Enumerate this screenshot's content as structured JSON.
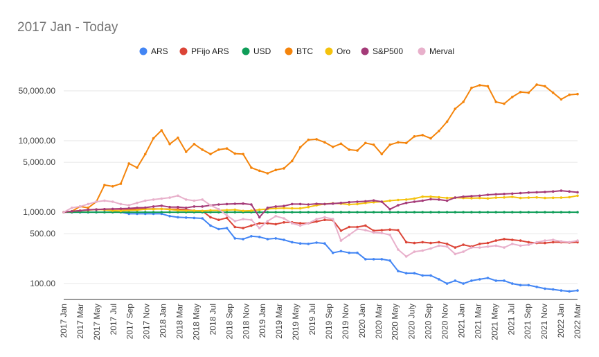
{
  "chart_data": {
    "type": "line",
    "title": "2017 Jan - Today",
    "xlabel": "",
    "ylabel": "",
    "yscale": "log",
    "ylim": [
      60,
      100000
    ],
    "grid": true,
    "legend_position": "top",
    "yticks": [
      {
        "value": 100,
        "label": "100.00"
      },
      {
        "value": 500,
        "label": "500.00"
      },
      {
        "value": 1000,
        "label": "1,000.00"
      },
      {
        "value": 5000,
        "label": "5,000.00"
      },
      {
        "value": 10000,
        "label": "10,000.00"
      },
      {
        "value": 50000,
        "label": "50,000.00"
      }
    ],
    "tick_labels": [
      "2017 Jan",
      "2017 Mar",
      "2017 May",
      "2017 Jul",
      "2017 Sep",
      "2017 Nov",
      "2018 Jan",
      "2018 Mar",
      "2018 May",
      "2018 Jul",
      "2018 Sep",
      "2018 Nov",
      "2019 Jan",
      "2019 Mar",
      "2019 May",
      "2019 Jul",
      "2019 Sep",
      "2019 Nov",
      "2020 Jan",
      "2020 Mar",
      "2020 May",
      "2020 July",
      "2020 Sep",
      "2020 Nov",
      "2021 Jan",
      "2021 Mar",
      "2021 May",
      "2021 Jul",
      "2021 Sep",
      "2021 Nov",
      "2022 Jan",
      "2022 Mar"
    ],
    "series": [
      {
        "name": "ARS",
        "color": "#4285f4",
        "values": [
          1000,
          1000,
          1000,
          1000,
          1000,
          1000,
          1000,
          1000,
          950,
          950,
          950,
          950,
          950,
          880,
          850,
          840,
          830,
          820,
          650,
          580,
          600,
          430,
          420,
          460,
          450,
          420,
          430,
          410,
          380,
          365,
          360,
          375,
          365,
          270,
          285,
          270,
          270,
          220,
          220,
          220,
          210,
          150,
          140,
          140,
          130,
          130,
          115,
          100,
          110,
          100,
          110,
          115,
          120,
          110,
          110,
          100,
          95,
          95,
          90,
          85,
          83,
          80,
          78,
          80
        ]
      },
      {
        "name": "PFijo ARS",
        "color": "#db4437",
        "values": [
          1000,
          1020,
          1050,
          1080,
          1090,
          1100,
          1100,
          1100,
          1100,
          1100,
          1110,
          1110,
          1110,
          1100,
          1100,
          1080,
          1050,
          1040,
          850,
          780,
          830,
          620,
          600,
          650,
          700,
          700,
          680,
          720,
          720,
          700,
          700,
          740,
          780,
          770,
          550,
          620,
          620,
          650,
          550,
          560,
          570,
          560,
          380,
          370,
          380,
          370,
          380,
          360,
          320,
          350,
          330,
          360,
          370,
          400,
          420,
          410,
          400,
          380,
          370,
          370,
          380,
          380,
          375,
          380
        ]
      },
      {
        "name": "USD",
        "color": "#0f9d58",
        "values": [
          1000,
          1000,
          1000,
          1000,
          1000,
          1000,
          1000,
          1000,
          1000,
          1000,
          1000,
          1000,
          1000,
          1000,
          1000,
          1000,
          1000,
          1000,
          1000,
          1000,
          1000,
          1000,
          1000,
          1000,
          1000,
          1000,
          1000,
          1000,
          1000,
          1000,
          1000,
          1000,
          1000,
          1000,
          1000,
          1000,
          1000,
          1000,
          1000,
          1000,
          1000,
          1000,
          1000,
          1000,
          1000,
          1000,
          1000,
          1000,
          1000,
          1000,
          1000,
          1000,
          1000,
          1000,
          1000,
          1000,
          1000,
          1000,
          1000,
          1000,
          1000,
          1000,
          1000,
          1000
        ]
      },
      {
        "name": "BTC",
        "color": "#f4840b",
        "values": [
          1000,
          1030,
          1200,
          1150,
          1400,
          2400,
          2300,
          2500,
          4800,
          4200,
          6500,
          10800,
          14000,
          9000,
          11000,
          7000,
          9000,
          7500,
          6500,
          7500,
          7800,
          6600,
          6500,
          4200,
          3800,
          3500,
          3900,
          4100,
          5200,
          8100,
          10300,
          10500,
          9500,
          8200,
          9100,
          7500,
          7300,
          9300,
          8800,
          6500,
          8800,
          9500,
          9300,
          11500,
          12000,
          10800,
          13700,
          18500,
          28000,
          35000,
          55000,
          60000,
          58000,
          35000,
          33000,
          41000,
          48000,
          47000,
          61000,
          58000,
          47000,
          38000,
          44000,
          45000
        ]
      },
      {
        "name": "Oro",
        "color": "#f4c20d",
        "values": [
          1000,
          1030,
          1050,
          1070,
          1090,
          1080,
          1050,
          1040,
          1060,
          1070,
          1100,
          1100,
          1110,
          1090,
          1060,
          1050,
          1050,
          1040,
          1060,
          1060,
          1070,
          1080,
          1040,
          1050,
          1080,
          1110,
          1130,
          1140,
          1130,
          1130,
          1180,
          1250,
          1300,
          1330,
          1320,
          1280,
          1300,
          1350,
          1380,
          1400,
          1450,
          1480,
          1500,
          1550,
          1650,
          1650,
          1620,
          1580,
          1600,
          1580,
          1570,
          1580,
          1560,
          1600,
          1610,
          1640,
          1580,
          1600,
          1610,
          1580,
          1590,
          1600,
          1620,
          1700
        ]
      },
      {
        "name": "S&P500",
        "color": "#a43a78",
        "values": [
          1000,
          1030,
          1050,
          1080,
          1090,
          1100,
          1110,
          1120,
          1130,
          1150,
          1160,
          1200,
          1230,
          1180,
          1180,
          1150,
          1200,
          1200,
          1250,
          1280,
          1300,
          1310,
          1320,
          1280,
          850,
          1150,
          1200,
          1220,
          1300,
          1300,
          1280,
          1310,
          1300,
          1320,
          1350,
          1380,
          1400,
          1420,
          1460,
          1400,
          1100,
          1250,
          1350,
          1400,
          1450,
          1520,
          1500,
          1450,
          1600,
          1650,
          1680,
          1700,
          1750,
          1780,
          1800,
          1820,
          1850,
          1880,
          1900,
          1920,
          1950,
          2000,
          1950,
          1900
        ]
      },
      {
        "name": "Merval",
        "color": "#e8b0cb",
        "values": [
          1000,
          1150,
          1200,
          1300,
          1400,
          1450,
          1400,
          1300,
          1250,
          1350,
          1450,
          1500,
          1550,
          1600,
          1700,
          1500,
          1450,
          1500,
          1250,
          1100,
          900,
          750,
          800,
          780,
          600,
          750,
          880,
          820,
          700,
          650,
          700,
          800,
          850,
          800,
          400,
          480,
          580,
          560,
          520,
          510,
          480,
          300,
          240,
          280,
          290,
          310,
          340,
          330,
          260,
          280,
          320,
          320,
          330,
          340,
          320,
          360,
          340,
          350,
          380,
          400,
          410,
          390,
          380,
          400
        ]
      }
    ]
  }
}
